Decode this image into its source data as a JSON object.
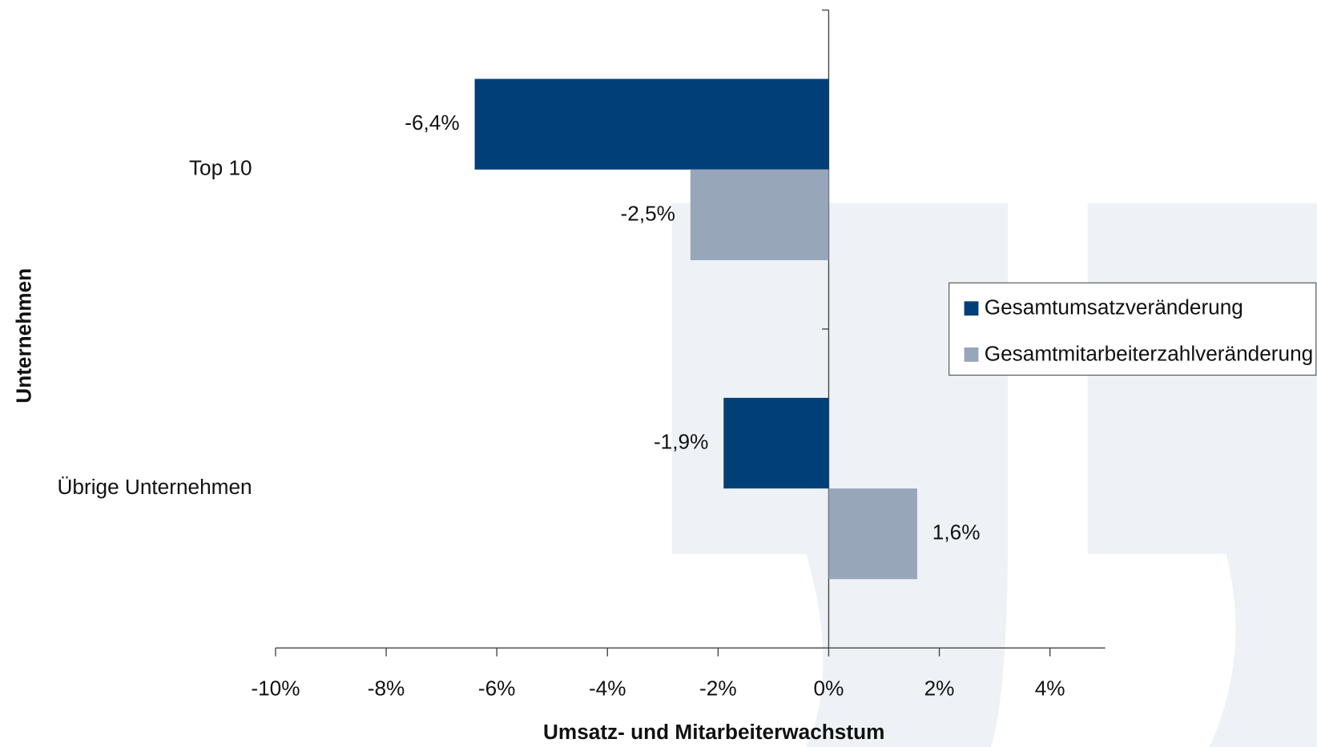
{
  "chart_data": {
    "type": "hbar",
    "categories": [
      "Top 10",
      "Übrige Unternehmen"
    ],
    "series": [
      {
        "name": "Gesamtumsatzveränderung",
        "color": "#003f78",
        "values": [
          -6.4,
          -1.9
        ],
        "value_labels": [
          "-6,4%",
          "-1,9%"
        ]
      },
      {
        "name": "Gesamtmitarbeiterzahlveränderung",
        "color": "#98a6ba",
        "values": [
          -2.5,
          1.6
        ],
        "value_labels": [
          "-2,5%",
          "1,6%"
        ]
      }
    ],
    "xlim": [
      -10,
      5
    ],
    "xticks": [
      {
        "value": -10,
        "label": "-10%"
      },
      {
        "value": -8,
        "label": "-8%"
      },
      {
        "value": -6,
        "label": "-6%"
      },
      {
        "value": -4,
        "label": "-4%"
      },
      {
        "value": -2,
        "label": "-2%"
      },
      {
        "value": 0,
        "label": "0%"
      },
      {
        "value": 2,
        "label": "2%"
      },
      {
        "value": 4,
        "label": "4%"
      }
    ],
    "x_label": "Umsatz- und Mitarbeiterwachstum",
    "y_label": "Unternehmen",
    "legend": "right",
    "grid": false
  }
}
